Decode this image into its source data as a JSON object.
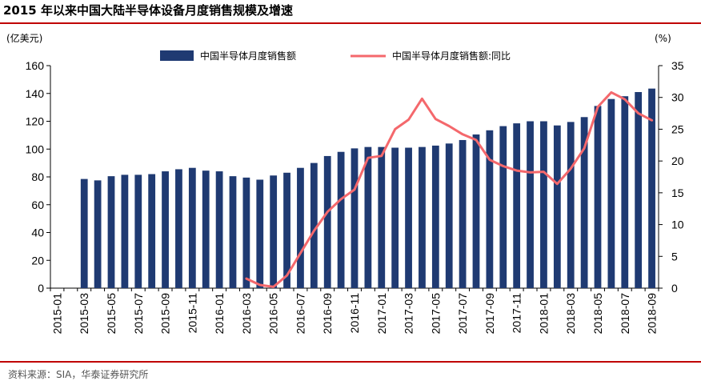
{
  "title": "2015 年以来中国大陆半导体设备月度销售规模及增速",
  "source": "资料来源：SIA，华泰证券研究所",
  "chart_data": {
    "type": "bar+line",
    "categories": [
      "2015-01",
      "2015-02",
      "2015-03",
      "2015-04",
      "2015-05",
      "2015-06",
      "2015-07",
      "2015-08",
      "2015-09",
      "2015-10",
      "2015-11",
      "2015-12",
      "2016-01",
      "2016-02",
      "2016-03",
      "2016-04",
      "2016-05",
      "2016-06",
      "2016-07",
      "2016-08",
      "2016-09",
      "2016-10",
      "2016-11",
      "2016-12",
      "2017-01",
      "2017-02",
      "2017-03",
      "2017-04",
      "2017-05",
      "2017-06",
      "2017-07",
      "2017-08",
      "2017-09",
      "2017-10",
      "2017-11",
      "2017-12",
      "2018-01",
      "2018-02",
      "2018-03",
      "2018-04",
      "2018-05",
      "2018-06",
      "2018-07",
      "2018-08",
      "2018-09"
    ],
    "tick_labels": [
      "2015-01",
      "2015-03",
      "2015-05",
      "2015-07",
      "2015-09",
      "2015-11",
      "2016-01",
      "2016-03",
      "2016-05",
      "2016-07",
      "2016-09",
      "2016-11",
      "2017-01",
      "2017-03",
      "2017-05",
      "2017-07",
      "2017-09",
      "2017-11",
      "2018-01",
      "2018-03",
      "2018-05",
      "2018-07",
      "2018-09"
    ],
    "ylabel_left": "(亿美元)",
    "ylabel_right": "(%)",
    "ylim_left": [
      0,
      160
    ],
    "yticks_left": [
      0,
      20,
      40,
      60,
      80,
      100,
      120,
      140,
      160
    ],
    "ylim_right": [
      0,
      35
    ],
    "yticks_right": [
      0,
      5,
      10,
      15,
      20,
      25,
      30,
      35
    ],
    "legend_placement": "top-center",
    "series": [
      {
        "name": "中国半导体月度销售额",
        "kind": "bar",
        "axis": "left",
        "color": "#1f3a72",
        "values": [
          null,
          null,
          78.5,
          77.5,
          80.5,
          81.5,
          81.5,
          82,
          84,
          85.5,
          86.5,
          84.5,
          84,
          80.5,
          79.5,
          78,
          81,
          83,
          86.5,
          90,
          95,
          98,
          100.5,
          101.5,
          101.5,
          101,
          101,
          101.5,
          102.5,
          104,
          106.5,
          110.5,
          113.5,
          116.5,
          118.5,
          120,
          120,
          117,
          119.5,
          123,
          131,
          136,
          138,
          141,
          143.5
        ]
      },
      {
        "name": "中国半导体月度销售额:同比",
        "kind": "line",
        "axis": "right",
        "color": "#f4686c",
        "values": [
          null,
          null,
          null,
          null,
          null,
          null,
          null,
          null,
          null,
          null,
          null,
          null,
          null,
          null,
          1.5,
          0.5,
          0.2,
          2,
          5.5,
          9,
          12,
          14,
          15.5,
          20.5,
          20.8,
          25,
          26.5,
          29.8,
          26.6,
          25.5,
          24.2,
          23.3,
          20.2,
          19.2,
          18.5,
          18.2,
          18.3,
          16.4,
          18.8,
          22,
          28.5,
          30.8,
          29.7,
          27.5,
          26.4
        ]
      }
    ]
  }
}
